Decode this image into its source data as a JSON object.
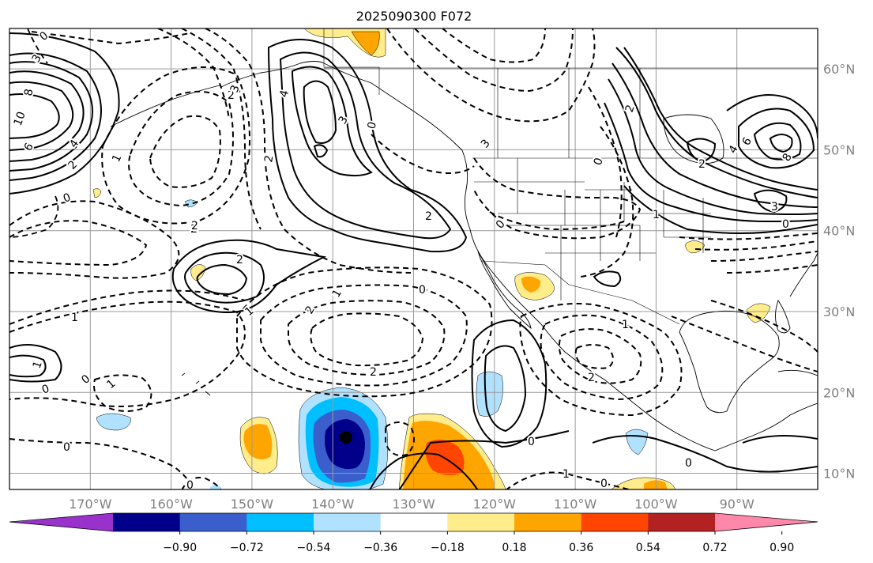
{
  "title": "2025090300 F072",
  "map": {
    "lon_range": [
      -180,
      -80
    ],
    "lat_range": [
      8,
      65
    ],
    "lat_labels": [
      "60°N",
      "50°N",
      "40°N",
      "30°N",
      "20°N",
      "10°N"
    ],
    "lon_labels": [
      "170°W",
      "160°W",
      "150°W",
      "140°W",
      "130°W",
      "120°W",
      "110°W",
      "100°W",
      "90°W"
    ],
    "grid": true
  },
  "colorbar": {
    "colors": [
      "#9932cc",
      "#00008b",
      "#3a5fcd",
      "#00bfff",
      "#b0e2ff",
      "#ffffff",
      "#ffec8b",
      "#ffa500",
      "#ff4500",
      "#b22222",
      "#ff88aa"
    ],
    "tick_labels": [
      "−0.90",
      "−0.72",
      "−0.54",
      "−0.36",
      "−0.18",
      "0.18",
      "0.36",
      "0.54",
      "0.72",
      "0.90"
    ]
  },
  "contour_labels": [
    "0",
    "3",
    "8",
    "10",
    "6",
    "4",
    "2",
    "1",
    "0",
    "2",
    "3",
    "4",
    "2",
    "0",
    "3",
    "2",
    "2",
    "2",
    "1",
    "2",
    "0",
    "1",
    "2",
    "1",
    "0",
    "1",
    "0",
    "1",
    "0",
    "2",
    "1",
    "0",
    "0",
    "0",
    "2",
    "3",
    "2",
    "4",
    "6",
    "8",
    "3",
    "0",
    "1",
    "0",
    "2",
    "1",
    "0",
    "0"
  ]
}
